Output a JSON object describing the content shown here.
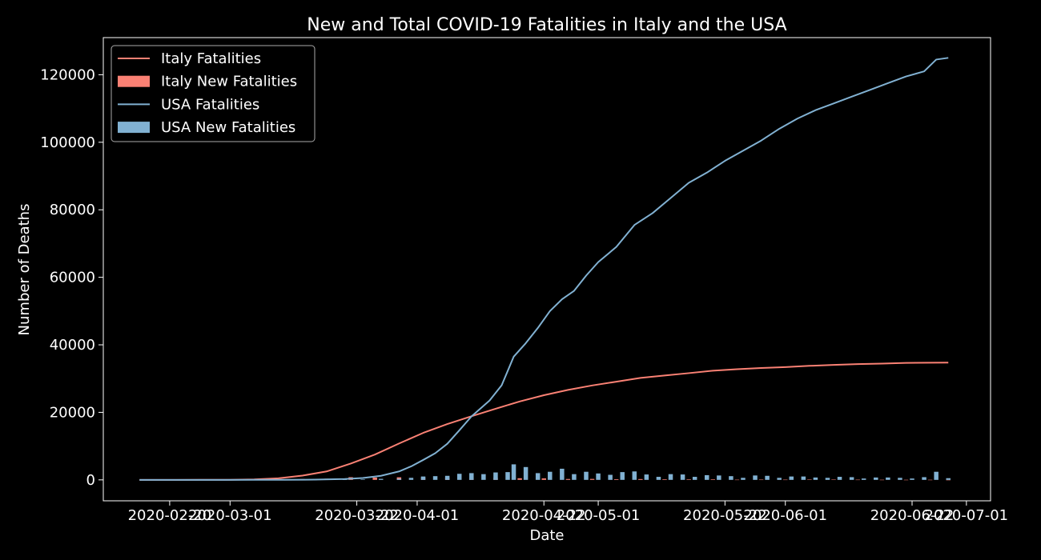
{
  "chart_data": {
    "type": "line+bar",
    "title": "New and Total COVID-19 Fatalities in Italy and the USA",
    "xlabel": "Date",
    "ylabel": "Number of Deaths",
    "xlim": [
      "2020-02-09",
      "2020-07-05"
    ],
    "ylim": [
      -6200,
      131000
    ],
    "x_ticks": [
      "2020-02-20",
      "2020-03-01",
      "2020-03-22",
      "2020-04-01",
      "2020-04-22",
      "2020-05-01",
      "2020-05-22",
      "2020-06-01",
      "2020-06-22",
      "2020-07-01"
    ],
    "y_ticks": [
      0,
      20000,
      40000,
      60000,
      80000,
      100000,
      120000
    ],
    "grid": false,
    "legend_position": "top-left",
    "colors": {
      "italy": "#fa8174",
      "usa": "#81b1d2",
      "background": "#000000",
      "foreground": "#ffffff"
    },
    "series": [
      {
        "name": "Italy Fatalities",
        "kind": "line",
        "color": "#fa8174",
        "points": [
          [
            "2020-02-15",
            0
          ],
          [
            "2020-02-21",
            1
          ],
          [
            "2020-02-25",
            11
          ],
          [
            "2020-03-01",
            34
          ],
          [
            "2020-03-05",
            148
          ],
          [
            "2020-03-09",
            463
          ],
          [
            "2020-03-13",
            1266
          ],
          [
            "2020-03-17",
            2503
          ],
          [
            "2020-03-21",
            4825
          ],
          [
            "2020-03-25",
            7503
          ],
          [
            "2020-03-29",
            10779
          ],
          [
            "2020-04-02",
            13915
          ],
          [
            "2020-04-06",
            16523
          ],
          [
            "2020-04-10",
            18849
          ],
          [
            "2020-04-14",
            21067
          ],
          [
            "2020-04-18",
            23227
          ],
          [
            "2020-04-22",
            25085
          ],
          [
            "2020-04-26",
            26644
          ],
          [
            "2020-04-30",
            27967
          ],
          [
            "2020-05-04",
            29079
          ],
          [
            "2020-05-08",
            30201
          ],
          [
            "2020-05-12",
            30911
          ],
          [
            "2020-05-16",
            31610
          ],
          [
            "2020-05-20",
            32330
          ],
          [
            "2020-05-24",
            32785
          ],
          [
            "2020-05-28",
            33142
          ],
          [
            "2020-06-01",
            33415
          ],
          [
            "2020-06-05",
            33774
          ],
          [
            "2020-06-09",
            34043
          ],
          [
            "2020-06-13",
            34301
          ],
          [
            "2020-06-17",
            34448
          ],
          [
            "2020-06-21",
            34634
          ],
          [
            "2020-06-25",
            34708
          ],
          [
            "2020-06-28",
            34738
          ]
        ]
      },
      {
        "name": "Italy New Fatalities",
        "kind": "bar",
        "color": "#fa8174",
        "points": [
          [
            "2020-02-25",
            4
          ],
          [
            "2020-03-01",
            5
          ],
          [
            "2020-03-05",
            41
          ],
          [
            "2020-03-09",
            97
          ],
          [
            "2020-03-13",
            250
          ],
          [
            "2020-03-17",
            345
          ],
          [
            "2020-03-21",
            793
          ],
          [
            "2020-03-25",
            683
          ],
          [
            "2020-03-29",
            756
          ],
          [
            "2020-04-02",
            760
          ],
          [
            "2020-04-06",
            636
          ],
          [
            "2020-04-10",
            570
          ],
          [
            "2020-04-14",
            602
          ],
          [
            "2020-04-18",
            482
          ],
          [
            "2020-04-22",
            437
          ],
          [
            "2020-04-26",
            260
          ],
          [
            "2020-04-30",
            285
          ],
          [
            "2020-05-04",
            195
          ],
          [
            "2020-05-08",
            243
          ],
          [
            "2020-05-12",
            172
          ],
          [
            "2020-05-16",
            153
          ],
          [
            "2020-05-20",
            161
          ],
          [
            "2020-05-24",
            50
          ],
          [
            "2020-05-28",
            70
          ],
          [
            "2020-06-01",
            60
          ],
          [
            "2020-06-05",
            85
          ],
          [
            "2020-06-09",
            79
          ],
          [
            "2020-06-13",
            55
          ],
          [
            "2020-06-17",
            34
          ],
          [
            "2020-06-21",
            24
          ],
          [
            "2020-06-25",
            30
          ],
          [
            "2020-06-28",
            8
          ]
        ]
      },
      {
        "name": "USA Fatalities",
        "kind": "line",
        "color": "#81b1d2",
        "points": [
          [
            "2020-02-15",
            0
          ],
          [
            "2020-02-29",
            1
          ],
          [
            "2020-03-05",
            11
          ],
          [
            "2020-03-10",
            30
          ],
          [
            "2020-03-15",
            68
          ],
          [
            "2020-03-20",
            250
          ],
          [
            "2020-03-23",
            550
          ],
          [
            "2020-03-26",
            1200
          ],
          [
            "2020-03-29",
            2500
          ],
          [
            "2020-03-31",
            4000
          ],
          [
            "2020-04-02",
            5900
          ],
          [
            "2020-04-04",
            7900
          ],
          [
            "2020-04-06",
            10700
          ],
          [
            "2020-04-08",
            14700
          ],
          [
            "2020-04-10",
            18800
          ],
          [
            "2020-04-13",
            23500
          ],
          [
            "2020-04-15",
            28000
          ],
          [
            "2020-04-17",
            36500
          ],
          [
            "2020-04-19",
            40500
          ],
          [
            "2020-04-21",
            45000
          ],
          [
            "2020-04-23",
            50000
          ],
          [
            "2020-04-25",
            53500
          ],
          [
            "2020-04-27",
            56000
          ],
          [
            "2020-04-29",
            60500
          ],
          [
            "2020-05-01",
            64500
          ],
          [
            "2020-05-04",
            69000
          ],
          [
            "2020-05-07",
            75500
          ],
          [
            "2020-05-10",
            79000
          ],
          [
            "2020-05-13",
            83500
          ],
          [
            "2020-05-16",
            88000
          ],
          [
            "2020-05-19",
            91000
          ],
          [
            "2020-05-22",
            94500
          ],
          [
            "2020-05-25",
            97500
          ],
          [
            "2020-05-28",
            100500
          ],
          [
            "2020-05-31",
            104000
          ],
          [
            "2020-06-03",
            107000
          ],
          [
            "2020-06-06",
            109500
          ],
          [
            "2020-06-09",
            111500
          ],
          [
            "2020-06-12",
            113500
          ],
          [
            "2020-06-15",
            115500
          ],
          [
            "2020-06-18",
            117500
          ],
          [
            "2020-06-21",
            119500
          ],
          [
            "2020-06-24",
            121000
          ],
          [
            "2020-06-26",
            124500
          ],
          [
            "2020-06-28",
            125000
          ]
        ]
      },
      {
        "name": "USA New Fatalities",
        "kind": "bar",
        "color": "#81b1d2",
        "points": [
          [
            "2020-03-05",
            2
          ],
          [
            "2020-03-10",
            5
          ],
          [
            "2020-03-15",
            20
          ],
          [
            "2020-03-20",
            100
          ],
          [
            "2020-03-23",
            140
          ],
          [
            "2020-03-26",
            300
          ],
          [
            "2020-03-29",
            350
          ],
          [
            "2020-03-31",
            600
          ],
          [
            "2020-04-02",
            1000
          ],
          [
            "2020-04-04",
            1100
          ],
          [
            "2020-04-06",
            1200
          ],
          [
            "2020-04-08",
            1800
          ],
          [
            "2020-04-10",
            2000
          ],
          [
            "2020-04-12",
            1700
          ],
          [
            "2020-04-14",
            2200
          ],
          [
            "2020-04-16",
            2300
          ],
          [
            "2020-04-17",
            4600
          ],
          [
            "2020-04-19",
            3800
          ],
          [
            "2020-04-21",
            2000
          ],
          [
            "2020-04-23",
            2400
          ],
          [
            "2020-04-25",
            3300
          ],
          [
            "2020-04-27",
            1700
          ],
          [
            "2020-04-29",
            2400
          ],
          [
            "2020-05-01",
            1900
          ],
          [
            "2020-05-03",
            1500
          ],
          [
            "2020-05-05",
            2300
          ],
          [
            "2020-05-07",
            2500
          ],
          [
            "2020-05-09",
            1600
          ],
          [
            "2020-05-11",
            900
          ],
          [
            "2020-05-13",
            1700
          ],
          [
            "2020-05-15",
            1600
          ],
          [
            "2020-05-17",
            900
          ],
          [
            "2020-05-19",
            1400
          ],
          [
            "2020-05-21",
            1300
          ],
          [
            "2020-05-23",
            1100
          ],
          [
            "2020-05-25",
            600
          ],
          [
            "2020-05-27",
            1300
          ],
          [
            "2020-05-29",
            1200
          ],
          [
            "2020-05-31",
            600
          ],
          [
            "2020-06-02",
            1000
          ],
          [
            "2020-06-04",
            1000
          ],
          [
            "2020-06-06",
            700
          ],
          [
            "2020-06-08",
            600
          ],
          [
            "2020-06-10",
            900
          ],
          [
            "2020-06-12",
            800
          ],
          [
            "2020-06-14",
            400
          ],
          [
            "2020-06-16",
            700
          ],
          [
            "2020-06-18",
            700
          ],
          [
            "2020-06-20",
            600
          ],
          [
            "2020-06-22",
            400
          ],
          [
            "2020-06-24",
            800
          ],
          [
            "2020-06-26",
            2400
          ],
          [
            "2020-06-28",
            500
          ]
        ]
      }
    ]
  }
}
